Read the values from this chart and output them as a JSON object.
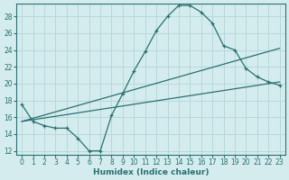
{
  "xlabel": "Humidex (Indice chaleur)",
  "bg_color": "#d4ecee",
  "grid_color": "#b8d8dc",
  "line_color": "#2a7070",
  "xlim": [
    -0.5,
    23.5
  ],
  "ylim": [
    11.5,
    29.5
  ],
  "xticks": [
    0,
    1,
    2,
    3,
    4,
    5,
    6,
    7,
    8,
    9,
    10,
    11,
    12,
    13,
    14,
    15,
    16,
    17,
    18,
    19,
    20,
    21,
    22,
    23
  ],
  "yticks": [
    12,
    14,
    16,
    18,
    20,
    22,
    24,
    26,
    28
  ],
  "line1_x": [
    0,
    1,
    2,
    3,
    4,
    5,
    6,
    7,
    8,
    9,
    10,
    11,
    12,
    13,
    14,
    15,
    16,
    17,
    18,
    19,
    20,
    21,
    22,
    23
  ],
  "line1_y": [
    17.5,
    15.5,
    15.0,
    14.7,
    14.7,
    13.5,
    12.0,
    12.0,
    16.2,
    18.8,
    21.5,
    23.8,
    26.3,
    28.0,
    29.3,
    29.3,
    28.5,
    27.2,
    24.5,
    24.0,
    21.8,
    20.8,
    20.2,
    19.8
  ],
  "line2_x": [
    0,
    23
  ],
  "line2_y": [
    15.5,
    20.2
  ],
  "line3_x": [
    0,
    23
  ],
  "line3_y": [
    15.5,
    24.2
  ],
  "marker_x": [
    0,
    1,
    2,
    3,
    4,
    5,
    6,
    7,
    8,
    9,
    10,
    11,
    12,
    13,
    14,
    15,
    16,
    17,
    18,
    19,
    20,
    21,
    22,
    23
  ],
  "marker_y": [
    17.5,
    15.5,
    15.0,
    14.7,
    14.7,
    13.5,
    12.0,
    12.0,
    16.2,
    18.8,
    21.5,
    23.8,
    26.3,
    28.0,
    29.3,
    29.3,
    28.5,
    27.2,
    24.5,
    24.0,
    21.8,
    20.8,
    20.2,
    19.8
  ]
}
